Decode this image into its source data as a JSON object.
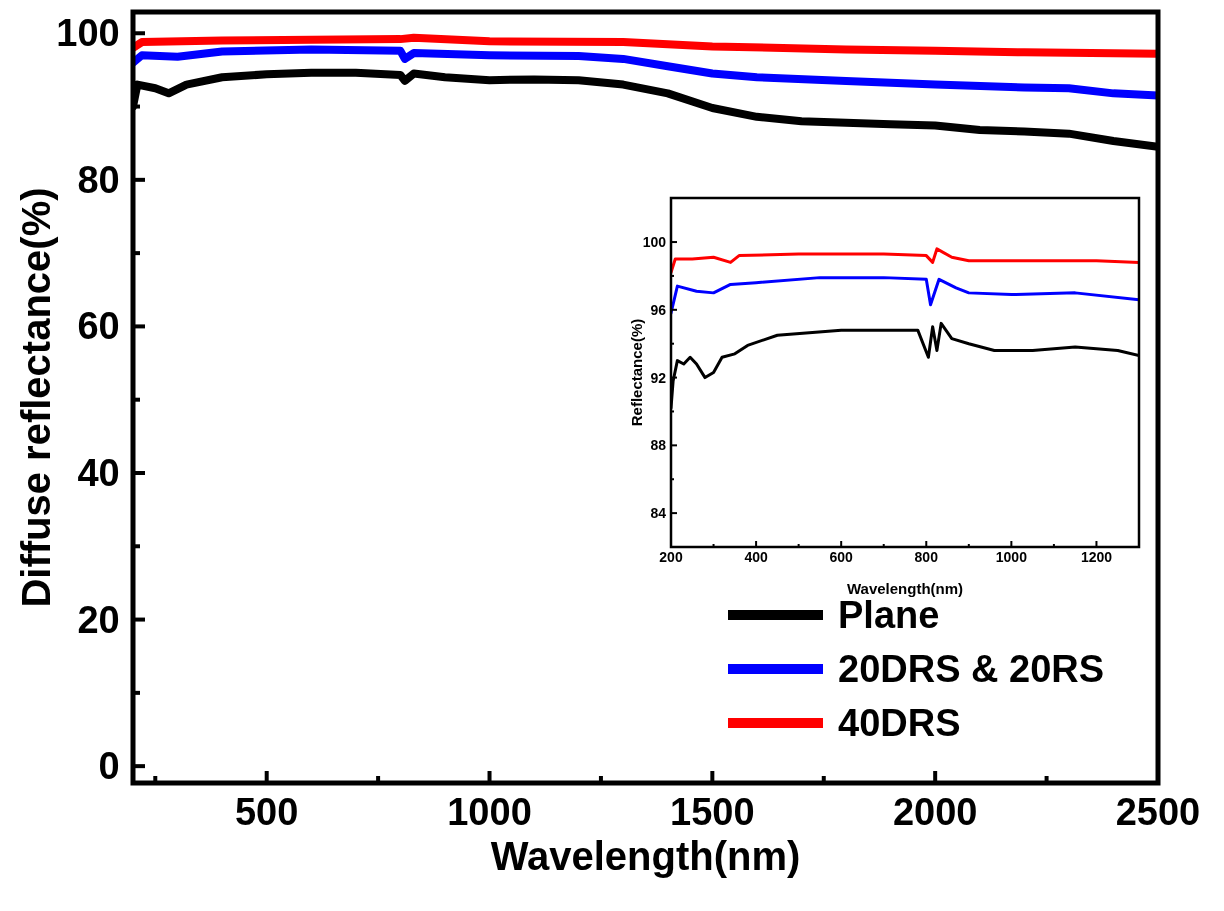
{
  "chart_data": [
    {
      "type": "line",
      "xlabel": "Wavelength(nm)",
      "ylabel": "Diffuse reflectance(%)",
      "xlim": [
        200,
        2500
      ],
      "ylim": [
        -2.3,
        102.9
      ],
      "xticks": [
        {
          "value": 250,
          "label": null
        },
        500,
        {
          "value": 750,
          "label": null
        },
        1000,
        {
          "value": 1250,
          "label": null
        },
        1500,
        {
          "value": 1750,
          "label": null
        },
        2000,
        {
          "value": 2250,
          "label": null
        },
        2500
      ],
      "yticks": [
        0,
        {
          "value": 10,
          "label": null
        },
        20,
        {
          "value": 30,
          "label": null
        },
        40,
        {
          "value": 50,
          "label": null
        },
        60,
        {
          "value": 70,
          "label": null
        },
        80,
        {
          "value": 90,
          "label": null
        },
        100
      ],
      "legend": "bottom right",
      "grid": false,
      "series": [
        {
          "name": "Plane",
          "color": "#000000",
          "x": [
            200,
            210,
            250,
            280,
            320,
            400,
            500,
            600,
            700,
            800,
            810,
            830,
            900,
            1000,
            1100,
            1200,
            1300,
            1400,
            1500,
            1600,
            1700,
            1800,
            1900,
            2000,
            2100,
            2200,
            2300,
            2400,
            2500
          ],
          "values": [
            90,
            93,
            92.5,
            91.8,
            93,
            94,
            94.4,
            94.6,
            94.6,
            94.3,
            93.5,
            94.5,
            94,
            93.6,
            93.7,
            93.6,
            93,
            91.8,
            89.8,
            88.6,
            88,
            87.8,
            87.6,
            87.4,
            86.8,
            86.6,
            86.3,
            85.3,
            84.5
          ]
        },
        {
          "name": "20DRS & 20RS",
          "color": "#0000ff",
          "x": [
            200,
            220,
            300,
            400,
            600,
            800,
            810,
            830,
            1000,
            1200,
            1300,
            1400,
            1500,
            1600,
            1800,
            2000,
            2200,
            2300,
            2400,
            2500
          ],
          "values": [
            96,
            97,
            96.8,
            97.5,
            97.8,
            97.6,
            96.5,
            97.3,
            97,
            96.9,
            96.5,
            95.5,
            94.5,
            94,
            93.5,
            93,
            92.6,
            92.5,
            91.8,
            91.5
          ]
        },
        {
          "name": "40DRS",
          "color": "#ff0000",
          "x": [
            200,
            220,
            400,
            800,
            830,
            1000,
            1300,
            1500,
            1800,
            2000,
            2200,
            2500
          ],
          "values": [
            98,
            98.8,
            99,
            99.2,
            99.4,
            98.9,
            98.8,
            98.2,
            97.8,
            97.6,
            97.4,
            97.2
          ]
        }
      ]
    },
    {
      "type": "line",
      "xlabel": "Wavelength(nm)",
      "ylabel": "Reflectance(%)",
      "xlim": [
        200,
        1300
      ],
      "ylim": [
        82,
        102.6
      ],
      "xticks": [
        200,
        {
          "value": 300,
          "label": null
        },
        400,
        {
          "value": 500,
          "label": null
        },
        600,
        {
          "value": 700,
          "label": null
        },
        800,
        {
          "value": 900,
          "label": null
        },
        1000,
        {
          "value": 1100,
          "label": null
        },
        1200
      ],
      "yticks": [
        84,
        {
          "value": 86,
          "label": null
        },
        88,
        {
          "value": 90,
          "label": null
        },
        92,
        {
          "value": 94,
          "label": null
        },
        96,
        {
          "value": 98,
          "label": null
        },
        100
      ],
      "grid": false,
      "series": [
        {
          "color": "#000000",
          "x": [
            200,
            205,
            215,
            230,
            245,
            260,
            280,
            300,
            320,
            350,
            380,
            450,
            600,
            780,
            805,
            815,
            825,
            835,
            860,
            900,
            960,
            1050,
            1150,
            1250,
            1300
          ],
          "values": [
            90.2,
            91.8,
            93,
            92.8,
            93.2,
            92.8,
            92,
            92.3,
            93.2,
            93.4,
            93.9,
            94.5,
            94.8,
            94.8,
            93.2,
            95,
            93.6,
            95.2,
            94.3,
            94,
            93.6,
            93.6,
            93.8,
            93.6,
            93.3
          ]
        },
        {
          "color": "#0000ff",
          "x": [
            200,
            215,
            260,
            300,
            340,
            400,
            550,
            700,
            800,
            810,
            830,
            870,
            900,
            1000,
            1150,
            1300
          ],
          "values": [
            95.8,
            97.4,
            97.1,
            97,
            97.5,
            97.6,
            97.9,
            97.9,
            97.8,
            96.3,
            97.8,
            97.3,
            97,
            96.9,
            97,
            96.6
          ]
        },
        {
          "color": "#ff0000",
          "x": [
            200,
            210,
            250,
            300,
            340,
            360,
            500,
            700,
            800,
            815,
            825,
            860,
            900,
            1000,
            1200,
            1300
          ],
          "values": [
            98.2,
            99,
            99,
            99.1,
            98.8,
            99.2,
            99.3,
            99.3,
            99.2,
            98.8,
            99.6,
            99.1,
            98.9,
            98.9,
            98.9,
            98.8
          ]
        }
      ]
    }
  ]
}
